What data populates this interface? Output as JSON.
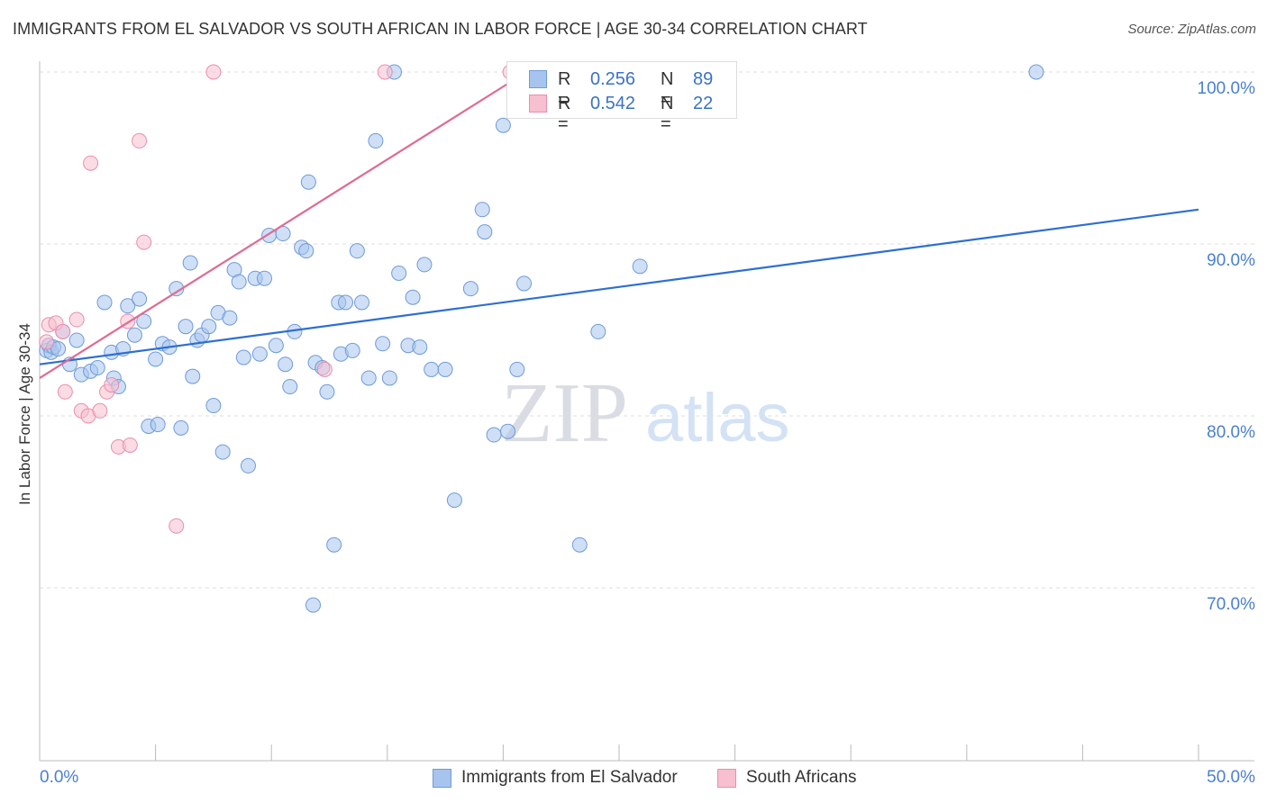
{
  "title": "IMMIGRANTS FROM EL SALVADOR VS SOUTH AFRICAN IN LABOR FORCE | AGE 30-34 CORRELATION CHART",
  "source": "Source: ZipAtlas.com",
  "watermark": {
    "zip": "ZIP",
    "atlas": "atlas"
  },
  "legend_top": [
    {
      "r_label": "R =",
      "r_value": "0.256",
      "n_label": "N =",
      "n_value": "89",
      "color": "#a7c4ee",
      "stroke": "#6e9bd8"
    },
    {
      "r_label": "R =",
      "r_value": "0.542",
      "n_label": "N =",
      "n_value": "22",
      "color": "#f7bfd0",
      "stroke": "#e88fac"
    }
  ],
  "legend_bottom": [
    {
      "label": "Immigrants from El Salvador",
      "color": "#a7c4ee",
      "stroke": "#6e9bd8"
    },
    {
      "label": "South Africans",
      "color": "#f7bfd0",
      "stroke": "#e88fac"
    }
  ],
  "chart_data": {
    "type": "scatter",
    "title": "IMMIGRANTS FROM EL SALVADOR VS SOUTH AFRICAN IN LABOR FORCE | AGE 30-34 CORRELATION CHART",
    "xlabel": "",
    "ylabel": "In Labor Force | Age 30-34",
    "xlim": [
      0,
      50
    ],
    "ylim": [
      60,
      100
    ],
    "x_tick_labels": [
      "0.0%",
      "50.0%"
    ],
    "y_ticks": [
      {
        "value": 100,
        "label": "100.0%"
      },
      {
        "value": 90,
        "label": "90.0%"
      },
      {
        "value": 80,
        "label": "80.0%"
      },
      {
        "value": 70,
        "label": "70.0%"
      }
    ],
    "colors": {
      "blue_fill": "#a7c4ee",
      "blue_stroke": "#6e9bd8",
      "blue_line": "#2e6fd1",
      "pink_fill": "#f7bfd0",
      "pink_stroke": "#e88fac",
      "pink_line": "#e06b92",
      "axis_label": "#4a7fd0",
      "grid": "#dddddd"
    },
    "series": [
      {
        "name": "Immigrants from El Salvador",
        "trend": {
          "x": [
            0.0,
            50.0
          ],
          "y": [
            83.0,
            92.0
          ]
        },
        "points": [
          [
            0.3,
            83.8
          ],
          [
            0.4,
            84.1
          ],
          [
            0.5,
            83.7
          ],
          [
            0.6,
            84.0
          ],
          [
            0.8,
            83.9
          ],
          [
            1.0,
            84.9
          ],
          [
            1.3,
            83.0
          ],
          [
            1.6,
            84.4
          ],
          [
            1.8,
            82.4
          ],
          [
            2.2,
            82.6
          ],
          [
            2.5,
            82.8
          ],
          [
            2.8,
            86.6
          ],
          [
            3.1,
            83.7
          ],
          [
            3.2,
            82.2
          ],
          [
            3.4,
            81.7
          ],
          [
            3.6,
            83.9
          ],
          [
            3.8,
            86.4
          ],
          [
            4.1,
            84.7
          ],
          [
            4.3,
            86.8
          ],
          [
            4.5,
            85.5
          ],
          [
            4.7,
            79.4
          ],
          [
            5.0,
            83.3
          ],
          [
            5.1,
            79.5
          ],
          [
            5.3,
            84.2
          ],
          [
            5.6,
            84.0
          ],
          [
            5.9,
            87.4
          ],
          [
            6.1,
            79.3
          ],
          [
            6.3,
            85.2
          ],
          [
            6.5,
            88.9
          ],
          [
            6.6,
            82.3
          ],
          [
            6.8,
            84.4
          ],
          [
            7.0,
            84.7
          ],
          [
            7.3,
            85.2
          ],
          [
            7.5,
            80.6
          ],
          [
            7.7,
            86.0
          ],
          [
            7.9,
            77.9
          ],
          [
            8.2,
            85.7
          ],
          [
            8.4,
            88.5
          ],
          [
            8.6,
            87.8
          ],
          [
            8.8,
            83.4
          ],
          [
            9.0,
            77.1
          ],
          [
            9.3,
            88.0
          ],
          [
            9.5,
            83.6
          ],
          [
            9.7,
            88.0
          ],
          [
            9.9,
            90.5
          ],
          [
            10.2,
            84.1
          ],
          [
            10.5,
            90.6
          ],
          [
            10.6,
            83.0
          ],
          [
            10.8,
            81.7
          ],
          [
            11.0,
            84.9
          ],
          [
            11.3,
            89.8
          ],
          [
            11.5,
            89.6
          ],
          [
            11.6,
            93.6
          ],
          [
            11.8,
            69.0
          ],
          [
            11.9,
            83.1
          ],
          [
            12.2,
            82.8
          ],
          [
            12.4,
            81.4
          ],
          [
            12.7,
            72.5
          ],
          [
            12.9,
            86.6
          ],
          [
            13.0,
            83.6
          ],
          [
            13.2,
            86.6
          ],
          [
            13.5,
            83.8
          ],
          [
            13.7,
            89.6
          ],
          [
            13.9,
            86.6
          ],
          [
            14.2,
            82.2
          ],
          [
            14.5,
            96.0
          ],
          [
            14.8,
            84.2
          ],
          [
            15.1,
            82.2
          ],
          [
            15.3,
            100.0
          ],
          [
            15.5,
            88.3
          ],
          [
            15.9,
            84.1
          ],
          [
            16.1,
            86.9
          ],
          [
            16.4,
            84.0
          ],
          [
            16.6,
            88.8
          ],
          [
            16.9,
            82.7
          ],
          [
            17.5,
            82.7
          ],
          [
            17.9,
            75.1
          ],
          [
            18.6,
            87.4
          ],
          [
            19.1,
            92.0
          ],
          [
            19.2,
            90.7
          ],
          [
            19.6,
            78.9
          ],
          [
            20.0,
            96.9
          ],
          [
            20.2,
            79.1
          ],
          [
            20.6,
            82.7
          ],
          [
            20.9,
            87.7
          ],
          [
            23.3,
            72.5
          ],
          [
            24.1,
            84.9
          ],
          [
            25.9,
            88.7
          ],
          [
            43.0,
            100.0
          ]
        ]
      },
      {
        "name": "South Africans",
        "trend": {
          "x": [
            0.0,
            21.0
          ],
          "y": [
            82.2,
            100.0
          ]
        },
        "points": [
          [
            0.3,
            84.3
          ],
          [
            0.4,
            85.3
          ],
          [
            0.7,
            85.4
          ],
          [
            1.0,
            84.9
          ],
          [
            1.1,
            81.4
          ],
          [
            1.6,
            85.6
          ],
          [
            1.8,
            80.3
          ],
          [
            2.1,
            80.0
          ],
          [
            2.2,
            94.7
          ],
          [
            2.6,
            80.3
          ],
          [
            2.9,
            81.4
          ],
          [
            3.1,
            81.8
          ],
          [
            3.4,
            78.2
          ],
          [
            3.8,
            85.5
          ],
          [
            3.9,
            78.3
          ],
          [
            4.3,
            96.0
          ],
          [
            4.5,
            90.1
          ],
          [
            5.9,
            73.6
          ],
          [
            7.5,
            100.0
          ],
          [
            12.3,
            82.7
          ],
          [
            14.9,
            100.0
          ],
          [
            20.3,
            100.0
          ]
        ]
      }
    ]
  }
}
